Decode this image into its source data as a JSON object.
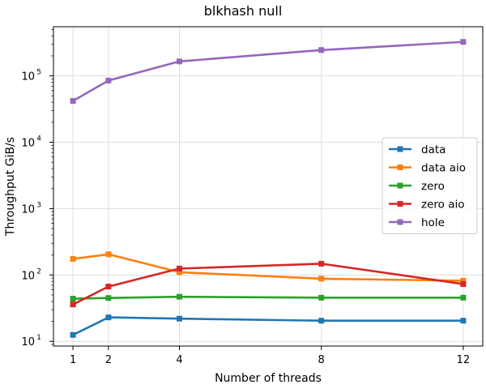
{
  "chart_data": {
    "type": "line",
    "title": "blkhash null",
    "xlabel": "Number of threads",
    "ylabel": "Throughput GiB/s",
    "yscale": "log",
    "xlim": [
      0.45,
      12.55
    ],
    "ylim": [
      8.5,
      550000
    ],
    "x": [
      1,
      2,
      4,
      8,
      12
    ],
    "xticks": [
      1,
      2,
      4,
      8,
      12
    ],
    "xtick_labels": [
      "1",
      "2",
      "4",
      "8",
      "12"
    ],
    "yticks": [
      10,
      100,
      1000,
      10000,
      100000
    ],
    "ytick_labels": [
      [
        "10",
        "1"
      ],
      [
        "10",
        "2"
      ],
      [
        "10",
        "3"
      ],
      [
        "10",
        "4"
      ],
      [
        "10",
        "5"
      ]
    ],
    "grid": true,
    "legend_position": "center-right",
    "series": [
      {
        "name": "data",
        "color": "#1f77b4",
        "values": [
          12.5,
          23,
          22,
          20.5,
          20.5
        ]
      },
      {
        "name": "data aio",
        "color": "#ff7f0e",
        "values": [
          175,
          205,
          110,
          88,
          82
        ]
      },
      {
        "name": "zero",
        "color": "#2ca02c",
        "values": [
          44,
          45,
          47,
          45.5,
          45.5
        ]
      },
      {
        "name": "zero aio",
        "color": "#d62728",
        "values": [
          36,
          67,
          125,
          148,
          73
        ]
      },
      {
        "name": "hole",
        "color": "#9467bd",
        "values": [
          42000,
          85000,
          165000,
          245000,
          325000
        ]
      }
    ]
  }
}
